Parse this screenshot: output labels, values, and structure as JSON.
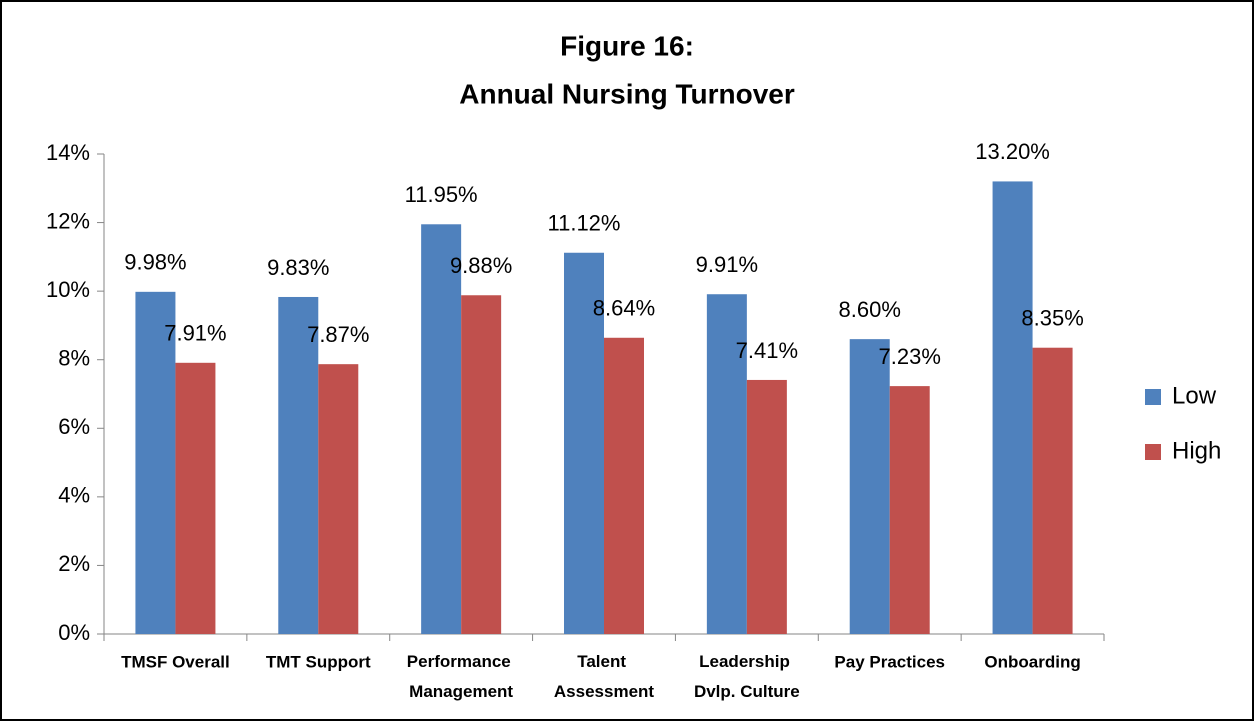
{
  "chart_data": {
    "type": "bar",
    "title": "Figure 16:",
    "subtitle": "Annual Nursing Turnover",
    "categories": [
      "TMSF Overall",
      "TMT Support",
      "Performance Management",
      "Talent Assessment",
      "Leadership Dvlp. Culture",
      "Pay Practices",
      "Onboarding"
    ],
    "series": [
      {
        "name": "Low",
        "color": "#4f81bd",
        "values": [
          9.98,
          9.83,
          11.95,
          11.12,
          9.91,
          8.6,
          13.2
        ],
        "value_labels": [
          "9.98%",
          "9.83%",
          "11.95%",
          "11.12%",
          "9.91%",
          "8.60%",
          "13.20%"
        ]
      },
      {
        "name": "High",
        "color": "#c0504d",
        "values": [
          7.91,
          7.87,
          9.88,
          8.64,
          7.41,
          7.23,
          8.35
        ],
        "value_labels": [
          "7.91%",
          "7.87%",
          "9.88%",
          "8.64%",
          "7.41%",
          "7.23%",
          "8.35%"
        ]
      }
    ],
    "ylim": [
      0,
      14
    ],
    "yticks": [
      {
        "value": 0,
        "label": "0%"
      },
      {
        "value": 2,
        "label": "2%"
      },
      {
        "value": 4,
        "label": "4%"
      },
      {
        "value": 6,
        "label": "6%"
      },
      {
        "value": 8,
        "label": "8%"
      },
      {
        "value": 10,
        "label": "10%"
      },
      {
        "value": 12,
        "label": "12%"
      },
      {
        "value": 14,
        "label": "14%"
      }
    ],
    "legend": "right",
    "grid": false
  }
}
